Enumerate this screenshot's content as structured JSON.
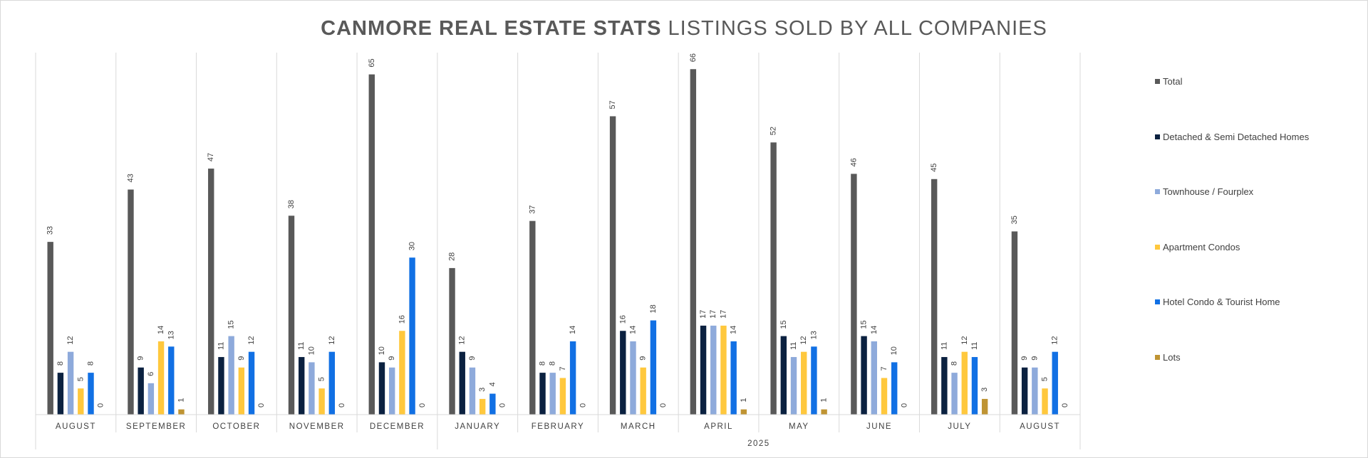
{
  "chart_data": {
    "type": "bar",
    "title_bold": "CANMORE REAL ESTATE STATS",
    "title_rest": "LISTINGS SOLD BY ALL COMPANIES",
    "categories": [
      "AUGUST",
      "SEPTEMBER",
      "OCTOBER",
      "NOVEMBER",
      "DECEMBER",
      "JANUARY",
      "FEBRUARY",
      "MARCH",
      "APRIL",
      "MAY",
      "JUNE",
      "JULY",
      "AUGUST"
    ],
    "year_label": "2025",
    "ylim": [
      0,
      70
    ],
    "legend_position": "right",
    "series": [
      {
        "name": "Total",
        "color": "#595959",
        "values": [
          33,
          43,
          47,
          38,
          65,
          28,
          37,
          57,
          66,
          52,
          46,
          45,
          35
        ]
      },
      {
        "name": "Detached & Semi Detached Homes",
        "color": "#0b2140",
        "values": [
          8,
          9,
          11,
          11,
          10,
          12,
          8,
          16,
          17,
          15,
          15,
          11,
          9
        ]
      },
      {
        "name": "Townhouse / Fourplex",
        "color": "#8eaadb",
        "values": [
          12,
          6,
          15,
          10,
          9,
          9,
          8,
          14,
          17,
          11,
          14,
          8,
          9
        ]
      },
      {
        "name": "Apartment Condos",
        "color": "#ffc83d",
        "values": [
          5,
          14,
          9,
          5,
          16,
          3,
          7,
          9,
          17,
          12,
          7,
          12,
          5
        ]
      },
      {
        "name": "Hotel Condo & Tourist Home",
        "color": "#1170e4",
        "values": [
          8,
          13,
          12,
          12,
          30,
          4,
          14,
          18,
          14,
          13,
          10,
          11,
          12
        ]
      },
      {
        "name": "Lots",
        "color": "#bf9433",
        "values": [
          0,
          1,
          0,
          0,
          0,
          0,
          0,
          0,
          1,
          1,
          0,
          3,
          0
        ]
      }
    ]
  }
}
